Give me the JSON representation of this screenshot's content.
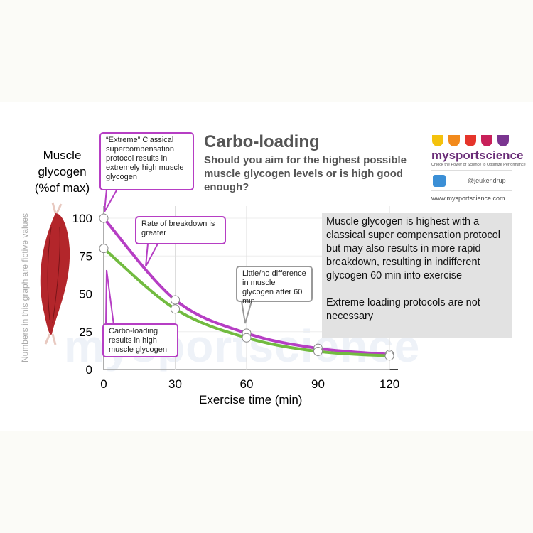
{
  "chart_data": {
    "type": "line",
    "title": "Carbo-loading",
    "subtitle": "Should you aim for the highest possible muscle glycogen levels or is high good enough?",
    "y_label": "Muscle glycogen (%of max)",
    "x_label": "Exercise time (min)",
    "side_note": "Numbers in this graph are fictive values",
    "x": [
      0,
      30,
      60,
      90,
      120
    ],
    "series": [
      {
        "color": "#b63ec4",
        "values": [
          100,
          46,
          24,
          14,
          10
        ]
      },
      {
        "color": "#72bb40",
        "values": [
          80,
          40,
          21,
          12,
          9
        ]
      }
    ],
    "xlim": [
      0,
      120
    ],
    "xticks": [
      0,
      30,
      60,
      90,
      120
    ],
    "ylim": [
      0,
      100
    ],
    "yticks": [
      0,
      25,
      50,
      75,
      100
    ],
    "grid": true,
    "annotations": [
      "“Extreme” Classical supercompensation protocol results in extremely high muscle glycogen",
      "Rate of breakdown is greater",
      "Little/no difference in muscle glycogen after 60 min",
      "Carbo-loading results in high muscle glycogen"
    ]
  },
  "info_box": {
    "paragraphs": [
      "Muscle glycogen is highest with a classical super compensation protocol but may also results in more rapid breakdown, resulting in indifferent glycogen 60 min into exercise",
      "Extreme loading protocols are not necessary"
    ]
  },
  "brand": {
    "name": "mysportscience",
    "tagline": "Unlock the Power of Science to Optimize Performance",
    "twitter": "@jeukendrup",
    "url": "www.mysportscience.com",
    "watermark": "mysportscience"
  }
}
